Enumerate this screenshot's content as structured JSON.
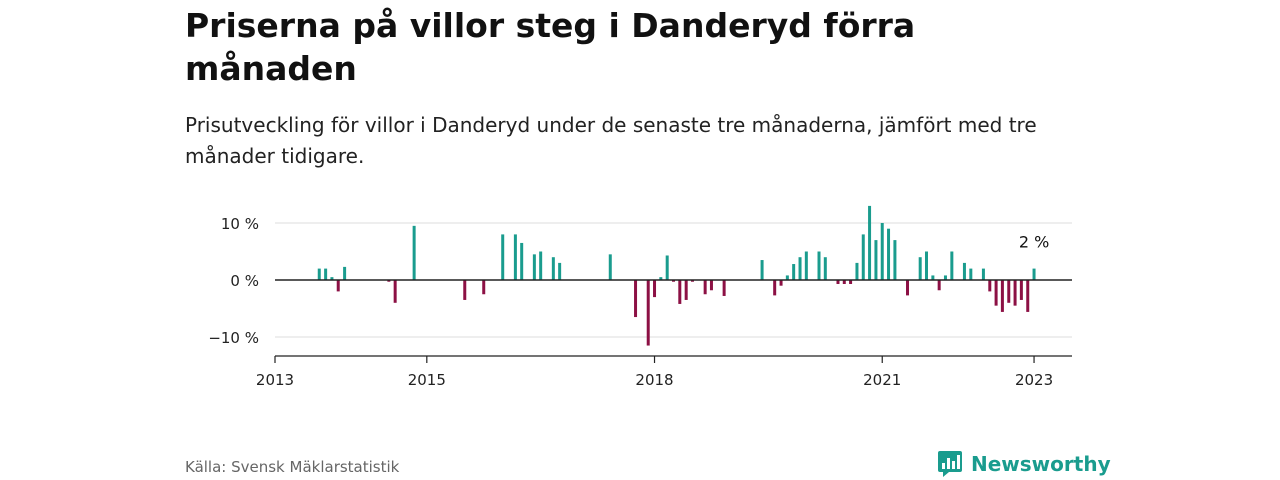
{
  "header": {
    "title": "Priserna på villor steg i Danderyd förra månaden",
    "subtitle": "Prisutveckling för villor i Danderyd under de senaste tre månaderna, jämfört med tre månader tidigare."
  },
  "footer": {
    "source": "Källa: Svensk Mäklarstatistik",
    "brand": "Newsworthy",
    "brand_icon": "newsworthy-chart-logo-icon"
  },
  "colors": {
    "positive": "#1a9c8e",
    "negative": "#8c1044",
    "brand": "#1a9c8e"
  },
  "chart_data": {
    "type": "bar",
    "x_unit": "year",
    "y_unit": "%",
    "ylim": [
      -14,
      14
    ],
    "xlim": [
      2013.0,
      2023.5
    ],
    "y_ticks": [
      10,
      0,
      -10
    ],
    "y_tick_labels": [
      "10 %",
      "0 %",
      "−10 %"
    ],
    "x_ticks": [
      2013,
      2015,
      2018,
      2021,
      2023
    ],
    "x_tick_labels": [
      "2013",
      "2015",
      "2018",
      "2021",
      "2023"
    ],
    "grid": true,
    "annotation": {
      "x": 2023.0,
      "y": 2,
      "text": "2 %"
    },
    "x": [
      2013.583,
      2013.667,
      2013.75,
      2013.833,
      2013.917,
      2014.5,
      2014.583,
      2014.833,
      2015.5,
      2015.75,
      2016.0,
      2016.167,
      2016.25,
      2016.417,
      2016.5,
      2016.667,
      2016.75,
      2017.417,
      2017.75,
      2017.917,
      2018.0,
      2018.083,
      2018.167,
      2018.25,
      2018.333,
      2018.417,
      2018.5,
      2018.667,
      2018.75,
      2018.917,
      2019.417,
      2019.583,
      2019.667,
      2019.75,
      2019.833,
      2019.917,
      2020.0,
      2020.167,
      2020.25,
      2020.417,
      2020.5,
      2020.583,
      2020.667,
      2020.75,
      2020.833,
      2020.917,
      2021.0,
      2021.083,
      2021.167,
      2021.333,
      2021.5,
      2021.583,
      2021.667,
      2021.75,
      2021.833,
      2021.917,
      2022.083,
      2022.167,
      2022.333,
      2022.417,
      2022.5,
      2022.583,
      2022.667,
      2022.75,
      2022.833,
      2022.917,
      2023.0
    ],
    "values": [
      2,
      2,
      0.5,
      -2,
      2.3,
      -0.3,
      -4,
      9.5,
      -3.5,
      -2.5,
      8,
      8,
      6.5,
      4.5,
      5,
      4,
      3,
      4.5,
      -6.5,
      -11.5,
      -3,
      0.5,
      4.3,
      -0.3,
      -4.2,
      -3.5,
      -0.3,
      -2.5,
      -1.8,
      -2.8,
      3.5,
      -2.7,
      -1,
      0.8,
      2.8,
      4,
      5,
      5,
      4,
      -0.7,
      -0.7,
      -0.7,
      3,
      8,
      13,
      7,
      10,
      9,
      7,
      -2.7,
      4,
      5,
      0.8,
      -1.8,
      0.8,
      5,
      3,
      2,
      2,
      -2,
      -4.5,
      -5.6,
      -4,
      -4.5,
      -3.5,
      -5.6,
      2
    ]
  }
}
